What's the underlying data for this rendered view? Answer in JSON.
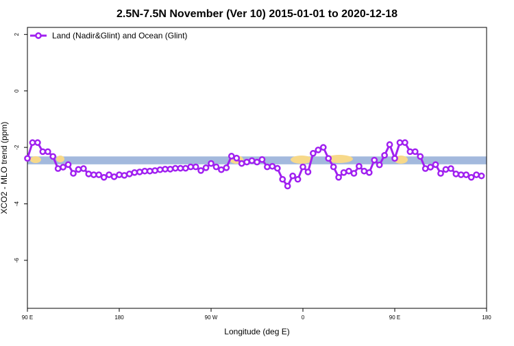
{
  "chart_data": {
    "type": "line",
    "title": "2.5N-7.5N November (Ver 10)   2015-01-01 to 2020-12-18",
    "x_label": "Longitude (deg E)",
    "y_label": "XCO2 - MLO trend (ppm)",
    "x": [
      90,
      95,
      100,
      105,
      110,
      115,
      120,
      125,
      130,
      135,
      140,
      145,
      150,
      155,
      160,
      165,
      170,
      175,
      180,
      185,
      190,
      195,
      200,
      205,
      210,
      215,
      220,
      225,
      230,
      235,
      240,
      245,
      250,
      255,
      260,
      265,
      270,
      275,
      280,
      285,
      290,
      295,
      300,
      305,
      310,
      315,
      320,
      325,
      330,
      335,
      340,
      345,
      350,
      355,
      360,
      365,
      370,
      375,
      380,
      385,
      390,
      395,
      400,
      405,
      410,
      415,
      420,
      425,
      430,
      435,
      440,
      445,
      450,
      455,
      460,
      465,
      470,
      475,
      480,
      485,
      490,
      495,
      500,
      505,
      510,
      515,
      520,
      525,
      530,
      535
    ],
    "series": [
      {
        "name": "Land (Nadir&Glint) and Ocean (Glint)",
        "color": "#a020f0",
        "values": [
          -2.39,
          -1.83,
          -1.83,
          -2.15,
          -2.15,
          -2.32,
          -2.75,
          -2.7,
          -2.61,
          -2.92,
          -2.78,
          -2.75,
          -2.94,
          -2.97,
          -2.97,
          -3.06,
          -2.97,
          -3.04,
          -2.97,
          -2.99,
          -2.94,
          -2.89,
          -2.87,
          -2.84,
          -2.84,
          -2.82,
          -2.79,
          -2.77,
          -2.77,
          -2.74,
          -2.74,
          -2.74,
          -2.69,
          -2.69,
          -2.82,
          -2.72,
          -2.57,
          -2.69,
          -2.79,
          -2.72,
          -2.31,
          -2.38,
          -2.57,
          -2.52,
          -2.47,
          -2.52,
          -2.43,
          -2.69,
          -2.67,
          -2.74,
          -3.13,
          -3.37,
          -3.01,
          -3.13,
          -2.69,
          -2.87,
          -2.21,
          -2.09,
          -2.0,
          -2.39,
          -2.69,
          -3.06,
          -2.89,
          -2.84,
          -2.92,
          -2.67,
          -2.84,
          -2.89,
          -2.45,
          -2.62,
          -2.28,
          -1.9,
          -2.39,
          -1.83,
          -1.83,
          -2.15,
          -2.15,
          -2.32,
          -2.75,
          -2.7,
          -2.61,
          -2.92,
          -2.78,
          -2.75,
          -2.94,
          -2.97,
          -2.97,
          -3.06,
          -2.97,
          -3.01
        ]
      }
    ],
    "band": {
      "ylim": [
        -2.6,
        -2.32
      ],
      "color": "#a3b9dd"
    },
    "xlim": [
      90,
      540
    ],
    "xticks": [
      {
        "value": 90,
        "label": "90 E"
      },
      180,
      {
        "value": 270,
        "label": "90 W"
      },
      {
        "value": 360,
        "label": "0"
      },
      {
        "value": 450,
        "label": "90 E"
      },
      {
        "value": 540,
        "label": "180"
      }
    ],
    "ylim": [
      -7.7,
      2.25
    ],
    "yticks": [
      2,
      0,
      -2,
      -4,
      -6
    ],
    "legend": "top-left"
  }
}
